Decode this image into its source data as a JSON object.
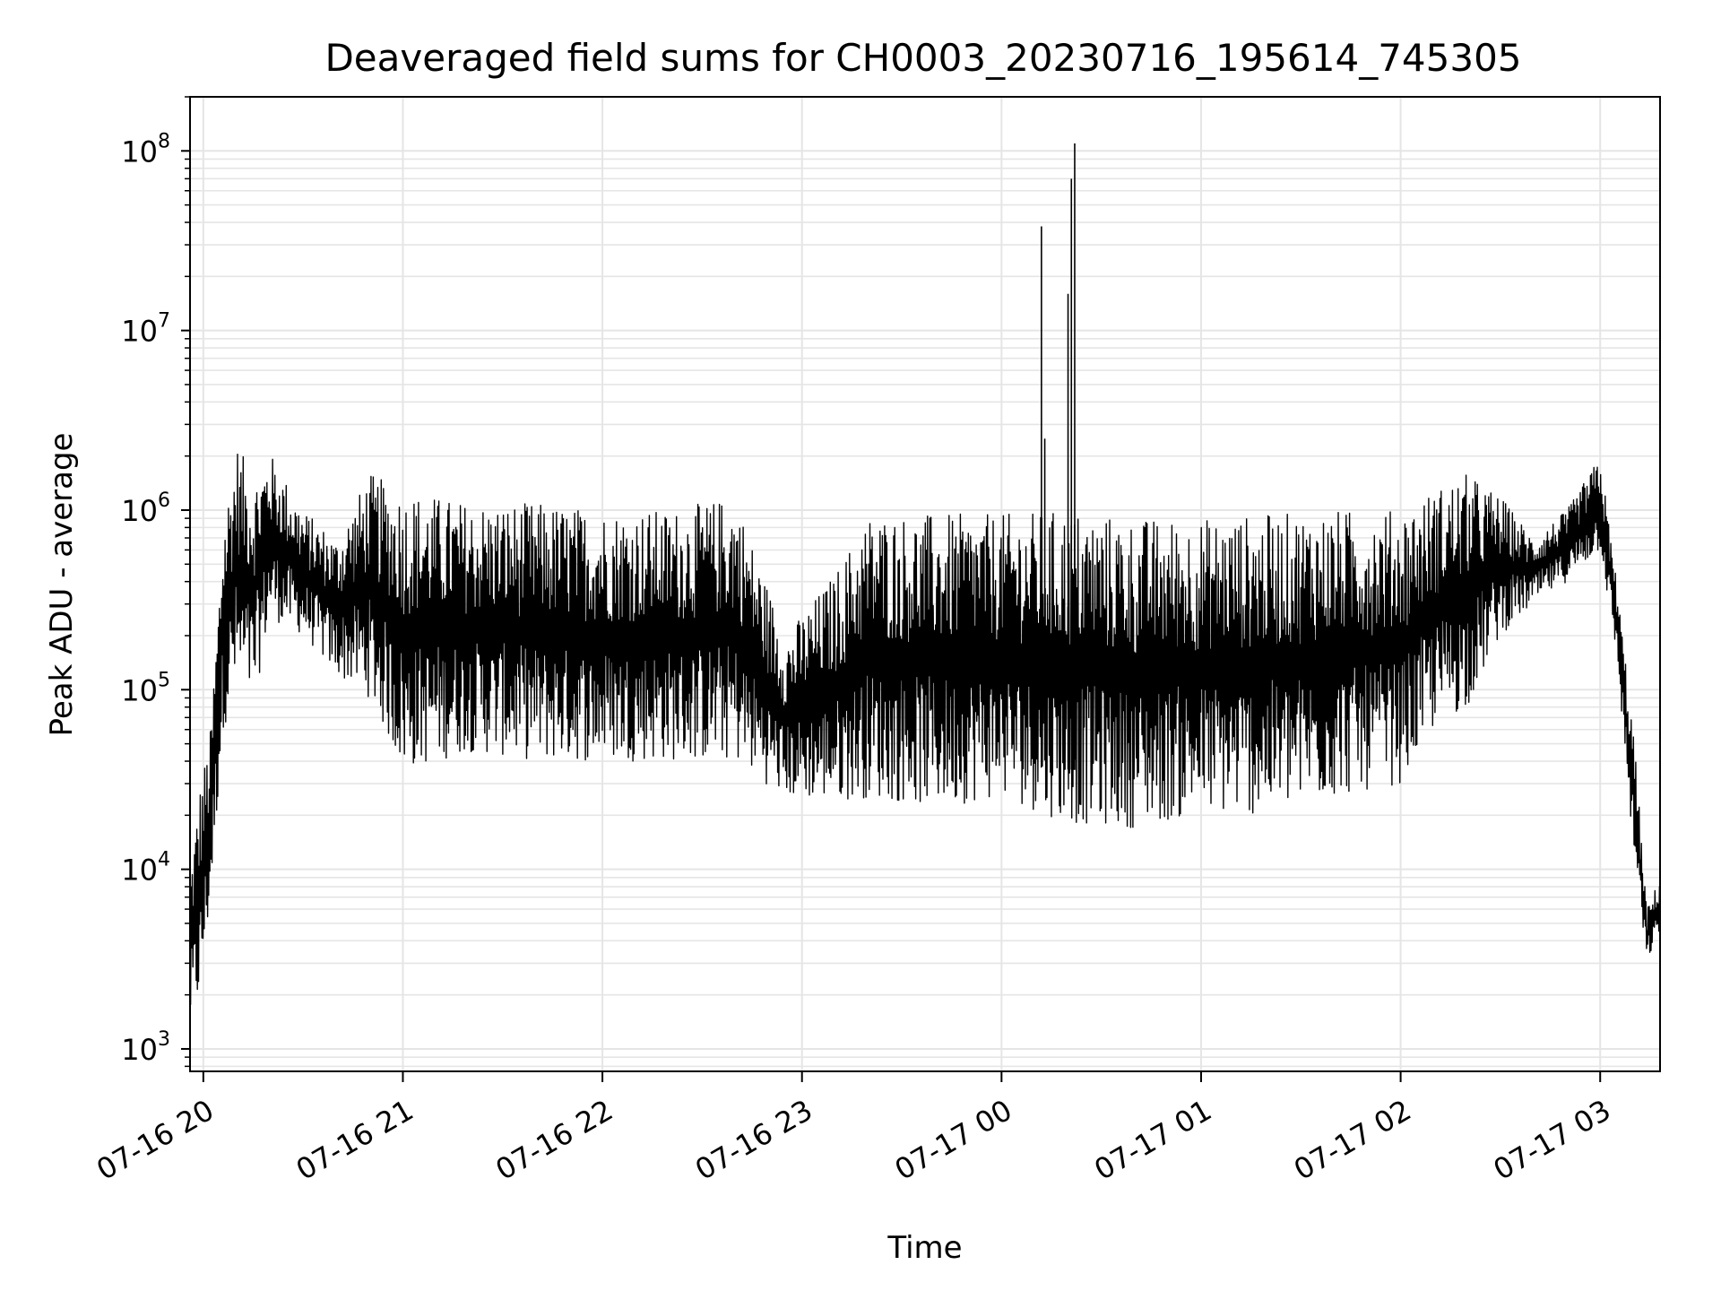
{
  "chart_data": {
    "type": "line",
    "title": "Deaveraged field sums for CH0003_20230716_195614_745305",
    "xlabel": "Time",
    "ylabel": "Peak ADU - average",
    "yscale": "log",
    "ylim": [
      750,
      200000000
    ],
    "xlim": [
      "2023-07-16 19:56",
      "2023-07-17 03:18"
    ],
    "grid": true,
    "line_color": "#000000",
    "grid_color": "#e5e5e5",
    "x_ticks": [
      {
        "value": "2023-07-16 20:00",
        "label": "07-16 20"
      },
      {
        "value": "2023-07-16 21:00",
        "label": "07-16 21"
      },
      {
        "value": "2023-07-16 22:00",
        "label": "07-16 22"
      },
      {
        "value": "2023-07-16 23:00",
        "label": "07-16 23"
      },
      {
        "value": "2023-07-17 00:00",
        "label": "07-17 00"
      },
      {
        "value": "2023-07-17 01:00",
        "label": "07-17 01"
      },
      {
        "value": "2023-07-17 02:00",
        "label": "07-17 02"
      },
      {
        "value": "2023-07-17 03:00",
        "label": "07-17 03"
      }
    ],
    "y_ticks": [
      {
        "value": 1000,
        "base": "10",
        "exp": "3"
      },
      {
        "value": 10000,
        "base": "10",
        "exp": "4"
      },
      {
        "value": 100000,
        "base": "10",
        "exp": "5"
      },
      {
        "value": 1000000,
        "base": "10",
        "exp": "6"
      },
      {
        "value": 10000000,
        "base": "10",
        "exp": "7"
      },
      {
        "value": 100000000,
        "base": "10",
        "exp": "8"
      }
    ],
    "series": [
      {
        "values_note_free": true,
        "envelope": [
          {
            "x": "2023-07-16 19:56",
            "low": 1300,
            "high": 10000
          },
          {
            "x": "2023-07-16 19:59",
            "low": 1900,
            "high": 30000
          },
          {
            "x": "2023-07-16 20:02",
            "low": 6000,
            "high": 55000
          },
          {
            "x": "2023-07-16 20:06",
            "low": 60000,
            "high": 900000
          },
          {
            "x": "2023-07-16 20:10",
            "low": 100000,
            "high": 2400000
          },
          {
            "x": "2023-07-16 20:15",
            "low": 80000,
            "high": 1500000
          },
          {
            "x": "2023-07-16 20:20",
            "low": 250000,
            "high": 2100000
          },
          {
            "x": "2023-07-16 20:30",
            "low": 200000,
            "high": 1000000
          },
          {
            "x": "2023-07-16 20:40",
            "low": 120000,
            "high": 700000
          },
          {
            "x": "2023-07-16 20:50",
            "low": 90000,
            "high": 1600000
          },
          {
            "x": "2023-07-16 21:00",
            "low": 35000,
            "high": 1300000
          },
          {
            "x": "2023-07-16 21:20",
            "low": 45000,
            "high": 1100000
          },
          {
            "x": "2023-07-16 21:40",
            "low": 40000,
            "high": 1100000
          },
          {
            "x": "2023-07-16 22:00",
            "low": 40000,
            "high": 1000000
          },
          {
            "x": "2023-07-16 22:20",
            "low": 40000,
            "high": 1000000
          },
          {
            "x": "2023-07-16 22:40",
            "low": 40000,
            "high": 1200000
          },
          {
            "x": "2023-07-16 22:55",
            "low": 25000,
            "high": 200000
          },
          {
            "x": "2023-07-16 23:10",
            "low": 24000,
            "high": 450000
          },
          {
            "x": "2023-07-16 23:20",
            "low": 25000,
            "high": 950000
          },
          {
            "x": "2023-07-16 23:40",
            "low": 22000,
            "high": 950000
          },
          {
            "x": "2023-07-17 00:00",
            "low": 25000,
            "high": 950000
          },
          {
            "x": "2023-07-17 00:20",
            "low": 18000,
            "high": 1000000
          },
          {
            "x": "2023-07-17 00:40",
            "low": 17000,
            "high": 900000
          },
          {
            "x": "2023-07-17 01:00",
            "low": 20000,
            "high": 900000
          },
          {
            "x": "2023-07-17 01:20",
            "low": 20000,
            "high": 950000
          },
          {
            "x": "2023-07-17 01:40",
            "low": 25000,
            "high": 1000000
          },
          {
            "x": "2023-07-17 02:00",
            "low": 30000,
            "high": 1000000
          },
          {
            "x": "2023-07-17 02:10",
            "low": 60000,
            "high": 1300000
          },
          {
            "x": "2023-07-17 02:20",
            "low": 80000,
            "high": 1600000
          },
          {
            "x": "2023-07-17 02:30",
            "low": 200000,
            "high": 1200000
          },
          {
            "x": "2023-07-17 02:40",
            "low": 300000,
            "high": 700000
          },
          {
            "x": "2023-07-17 02:50",
            "low": 400000,
            "high": 1000000
          },
          {
            "x": "2023-07-17 03:00",
            "low": 600000,
            "high": 2000000
          },
          {
            "x": "2023-07-17 03:05",
            "low": 150000,
            "high": 400000
          },
          {
            "x": "2023-07-17 03:10",
            "low": 12000,
            "high": 60000
          },
          {
            "x": "2023-07-17 03:14",
            "low": 3000,
            "high": 6000
          },
          {
            "x": "2023-07-17 03:18",
            "low": 4500,
            "high": 9000
          }
        ],
        "spikes": [
          {
            "x": "2023-07-17 00:12",
            "value": 38000000
          },
          {
            "x": "2023-07-17 00:13",
            "value": 2500000
          },
          {
            "x": "2023-07-17 00:20",
            "value": 16000000
          },
          {
            "x": "2023-07-17 00:21",
            "value": 70000000
          },
          {
            "x": "2023-07-17 00:22",
            "value": 110000000
          }
        ]
      }
    ]
  }
}
